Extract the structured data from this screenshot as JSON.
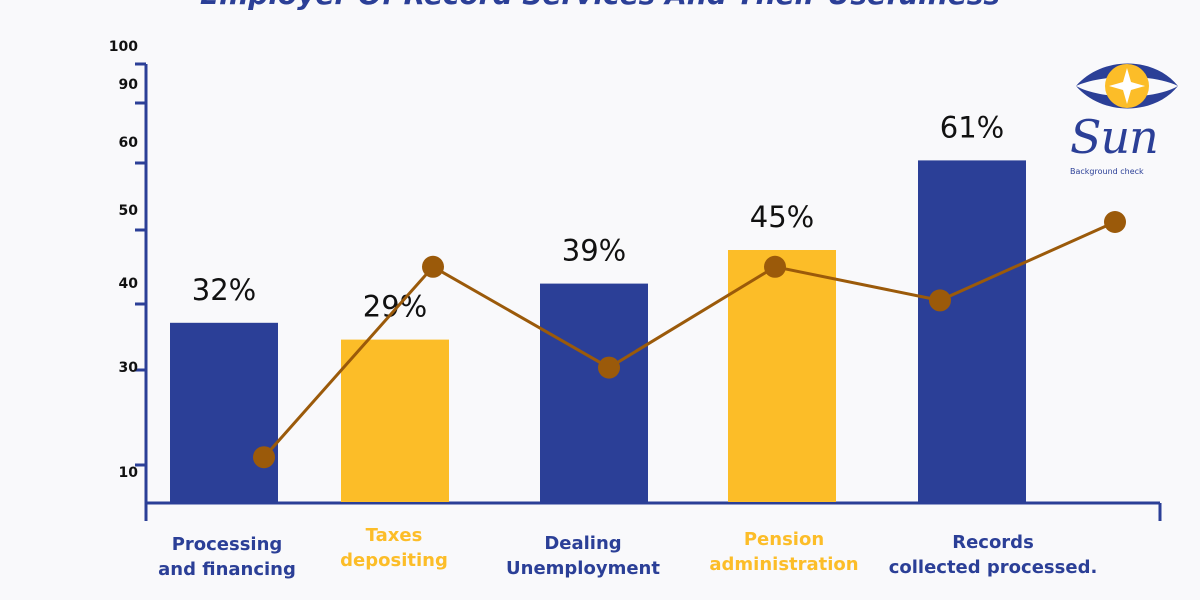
{
  "chart_data": {
    "type": "bar",
    "title": "Employer Of Record Services And Their Usefulness",
    "categories": [
      "Processing\nand financing",
      "Taxes\ndepositing",
      "Dealing\nUnemployment",
      "Pension\nadministration",
      "Records\ncollected processed."
    ],
    "values": [
      32,
      29,
      39,
      45,
      61
    ],
    "value_labels": [
      "32%",
      "29%",
      "39%",
      "45%",
      "61%"
    ],
    "bar_colors": [
      "#2b3f97",
      "#fcbd28",
      "#2b3f97",
      "#fcbd28",
      "#2b3f97"
    ],
    "category_label_colors": [
      "#2b3f97",
      "#fcbd28",
      "#2b3f97",
      "#fcbd28",
      "#2b3f97"
    ],
    "line_series": {
      "color": "#9b5a0a",
      "values": [
        8,
        42,
        24,
        42,
        36,
        50
      ]
    },
    "y_ticks": [
      {
        "label": "10",
        "value": 10
      },
      {
        "label": "30",
        "value": 30
      },
      {
        "label": "40",
        "value": 40
      },
      {
        "label": "50",
        "value": 50
      },
      {
        "label": "60",
        "value": 60
      },
      {
        "label": "90",
        "value": 90
      },
      {
        "label": "100",
        "value": 100
      }
    ],
    "xlabel": "",
    "ylabel": "",
    "grid": false
  },
  "logo": {
    "word": "Sun",
    "subtitle": "Background check",
    "colors": {
      "blue": "#2b3f97",
      "yellow": "#fcbd28"
    }
  }
}
